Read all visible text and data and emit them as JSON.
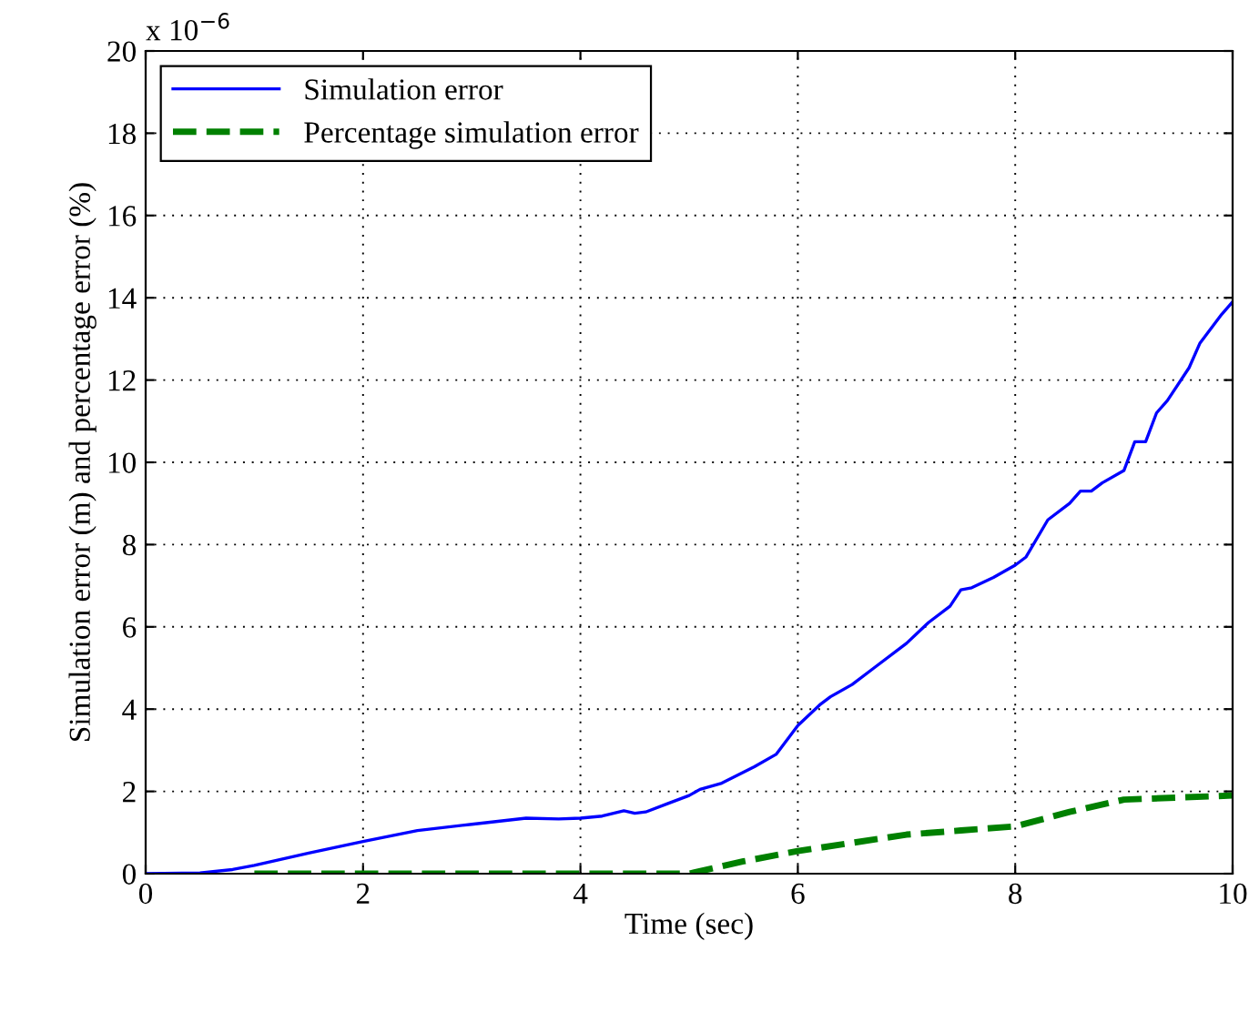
{
  "chart_data": {
    "type": "line",
    "xlabel": "Time (sec)",
    "ylabel": "Simulation error (m) and percentage error (%)",
    "annotations": [
      "x 10$^{−6}$"
    ],
    "xlim": [
      0,
      10
    ],
    "ylim": [
      0,
      20
    ],
    "xticks": [
      0,
      2,
      4,
      6,
      8,
      10
    ],
    "yticks": [
      0,
      2,
      4,
      6,
      8,
      10,
      12,
      14,
      16,
      18,
      20
    ],
    "grid": true,
    "legend": "top left",
    "series": [
      {
        "name": "Simulation error",
        "color": "#0000ff",
        "line_style": "solid",
        "x": [
          0,
          0.5,
          0.8,
          1,
          1.5,
          2,
          2.5,
          3,
          3.5,
          3.8,
          4,
          4.2,
          4.4,
          4.5,
          4.6,
          4.8,
          5,
          5.1,
          5.3,
          5.6,
          5.8,
          6,
          6.2,
          6.3,
          6.5,
          6.7,
          7,
          7.2,
          7.4,
          7.5,
          7.6,
          7.8,
          8,
          8.1,
          8.3,
          8.5,
          8.6,
          8.7,
          8.8,
          9,
          9.1,
          9.2,
          9.3,
          9.4,
          9.6,
          9.7,
          9.9,
          10
        ],
        "values": [
          0,
          0.02,
          0.1,
          0.2,
          0.5,
          0.78,
          1.05,
          1.2,
          1.35,
          1.33,
          1.35,
          1.4,
          1.53,
          1.47,
          1.5,
          1.7,
          1.9,
          2.05,
          2.2,
          2.6,
          2.9,
          3.6,
          4.1,
          4.3,
          4.6,
          5.0,
          5.6,
          6.1,
          6.5,
          6.9,
          6.95,
          7.2,
          7.5,
          7.7,
          8.6,
          9.0,
          9.3,
          9.3,
          9.5,
          9.8,
          10.5,
          10.5,
          11.2,
          11.5,
          12.3,
          12.9,
          13.6,
          13.9
        ]
      },
      {
        "name": "Percentage simulation error",
        "color": "#008000",
        "line_style": "dashed",
        "x": [
          1,
          2,
          3,
          4,
          5,
          5.5,
          6,
          6.5,
          7,
          7.5,
          8,
          8.5,
          9,
          10
        ],
        "values": [
          0,
          0,
          0,
          0,
          0,
          0.3,
          0.55,
          0.75,
          0.95,
          1.05,
          1.15,
          1.5,
          1.8,
          1.9
        ]
      }
    ]
  }
}
